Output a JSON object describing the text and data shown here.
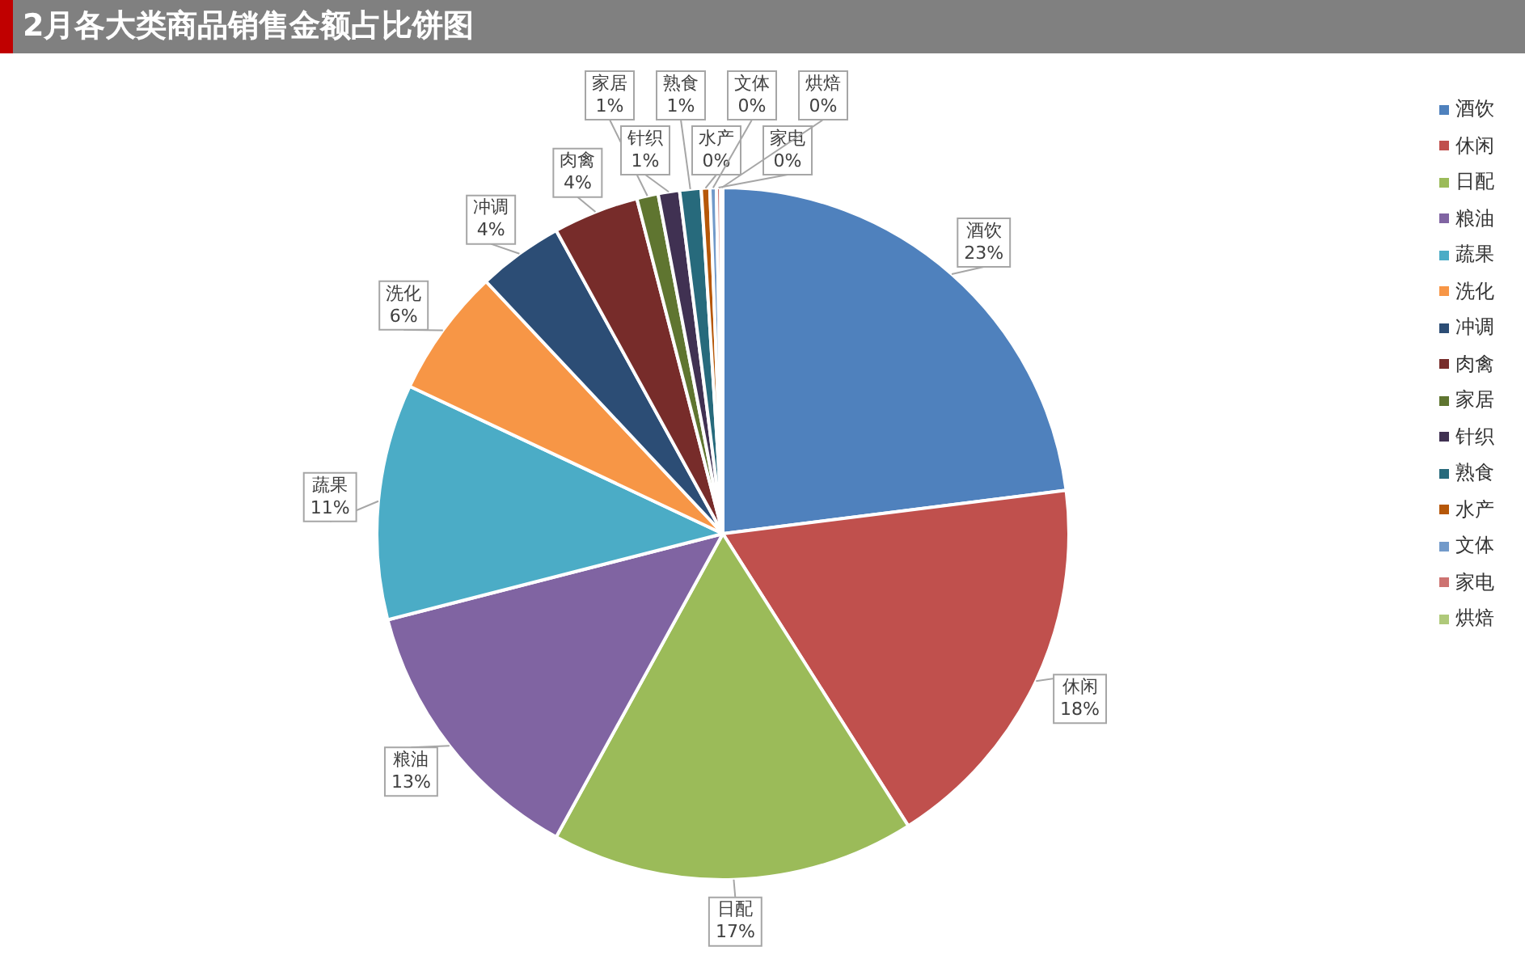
{
  "chart_data": {
    "type": "pie",
    "title": "2月各大类商品销售金额占比饼图",
    "categories": [
      "酒饮",
      "休闲",
      "日配",
      "粮油",
      "蔬果",
      "洗化",
      "冲调",
      "肉禽",
      "家居",
      "针织",
      "熟食",
      "水产",
      "文体",
      "家电",
      "烘焙"
    ],
    "values": [
      23,
      18,
      17,
      13,
      11,
      6,
      4,
      4,
      1,
      1,
      1,
      0.4,
      0.3,
      0.2,
      0.1
    ],
    "value_labels": [
      "23%",
      "18%",
      "17%",
      "13%",
      "11%",
      "6%",
      "4%",
      "4%",
      "1%",
      "1%",
      "1%",
      "0%",
      "0%",
      "0%",
      "0%"
    ],
    "colors": [
      "#4f81bd",
      "#c0504d",
      "#9bbb59",
      "#8064a2",
      "#4bacc6",
      "#f79646",
      "#2c4d75",
      "#772c2a",
      "#5f7530",
      "#403152",
      "#276a7c",
      "#b65708",
      "#729aca",
      "#cd7371",
      "#afc97a"
    ],
    "legend": "right"
  }
}
